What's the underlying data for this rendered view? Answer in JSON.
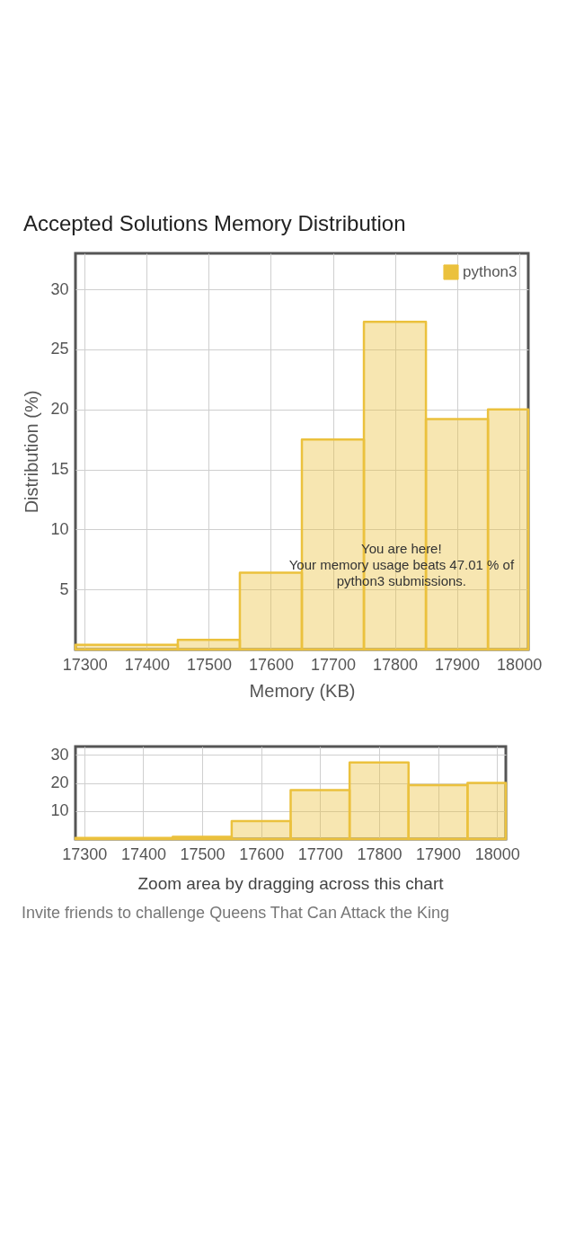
{
  "chart_data": [
    {
      "type": "histogram",
      "title": "Accepted Solutions Memory Distribution",
      "xlabel": "Memory (KB)",
      "ylabel": "Distribution (%)",
      "bins": [
        17285,
        17450,
        17550,
        17650,
        17750,
        17850,
        17950,
        18015
      ],
      "series": [
        {
          "name": "python3",
          "color": "#ebc13d",
          "values": [
            0.4,
            0.8,
            6.4,
            17.5,
            27.3,
            19.2,
            20.0
          ]
        }
      ],
      "xlim": [
        17285,
        18015
      ],
      "ylim": [
        0,
        33
      ],
      "xticks": [
        17300,
        17400,
        17500,
        17600,
        17700,
        17800,
        17900,
        18000
      ],
      "yticks": [
        5,
        10,
        15,
        20,
        25,
        30
      ],
      "grid": true,
      "legend": "top right",
      "annotations": [
        "You are here!\nYour memory usage beats 47.01 % of\npython3 submissions."
      ]
    },
    {
      "type": "histogram",
      "bins": [
        17285,
        17450,
        17550,
        17650,
        17750,
        17850,
        17950,
        18015
      ],
      "series": [
        {
          "color": "#ebc13d",
          "values": [
            0.4,
            0.8,
            6.4,
            17.5,
            27.3,
            19.2,
            20.0
          ]
        }
      ],
      "xlim": [
        17285,
        18015
      ],
      "ylim": [
        0,
        33
      ],
      "xticks": [
        17300,
        17400,
        17500,
        17600,
        17700,
        17800,
        17900,
        18000
      ],
      "yticks": [
        10,
        20,
        30
      ],
      "grid": true,
      "annotations": [
        "Zoom area by dragging across this chart",
        "Invite friends to challenge Queens That Can Attack the King"
      ]
    }
  ]
}
